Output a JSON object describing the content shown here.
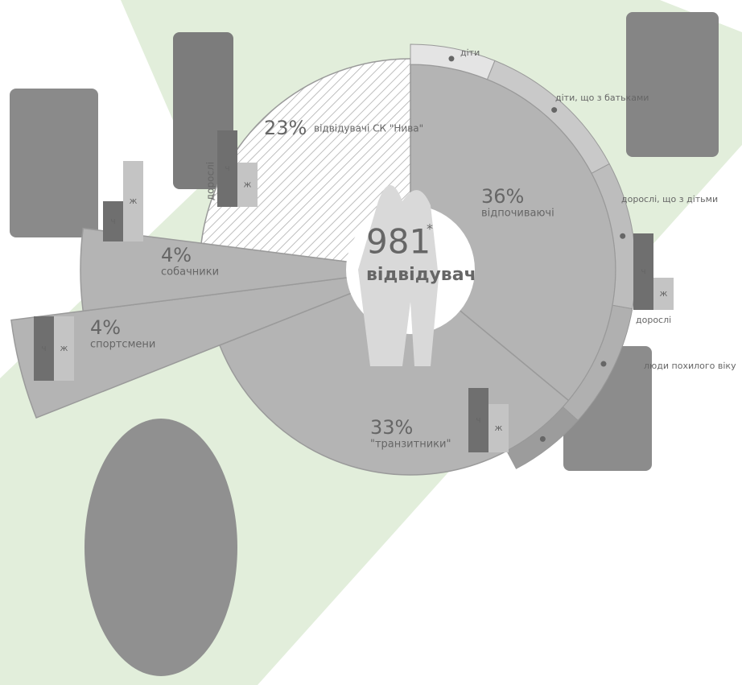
{
  "chart_data": {
    "type": "pie",
    "categories": [
      "відпочиваючі",
      "\"транзитники\"",
      "спортсмени",
      "собачники",
      "відвідувачі СК \"Нива\""
    ],
    "values": [
      36,
      33,
      4,
      4,
      23
    ],
    "value_labels": [
      "36%",
      "33%",
      "4%",
      "4%",
      "23%"
    ],
    "color": "#b4b4b4",
    "total": "981",
    "total_mark": "*",
    "total_label": "відвідувач",
    "outer_ring_labels": [
      "діти",
      "діти, що з батьками",
      "дорослі, що з дітьми",
      "дорослі",
      "люди похилого віку"
    ],
    "male_label": "ч",
    "female_label": "ж",
    "adults_label": "дорослі"
  }
}
